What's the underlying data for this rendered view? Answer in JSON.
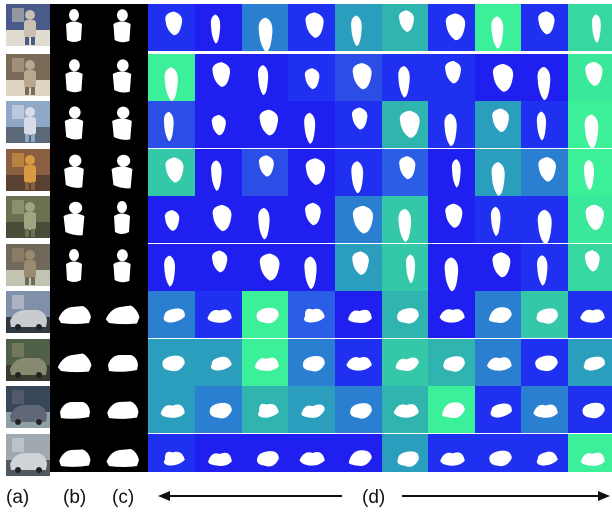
{
  "labels": {
    "a": "(a)",
    "b": "(b)",
    "c": "(c)",
    "d": "(d)"
  },
  "colors": {
    "background_blue": "#1f1ff0",
    "mid_blue": "#2a5ee6",
    "teal": "#2c9ebd",
    "green_teal": "#34c8a8",
    "bright_green": "#3cf09a",
    "mask": "#ffffff",
    "mask_background": "#000000"
  },
  "rows": [
    {
      "scene": "sports-player",
      "colors": [
        "#1f30f0",
        "#1f1ff0",
        "#2a7fd0",
        "#1f30f0",
        "#2c9ebd",
        "#2fb4b0",
        "#1f30f0",
        "#3cf09a",
        "#1f30f0",
        "#36d8a0"
      ]
    },
    {
      "scene": "man-with-bowls",
      "colors": [
        "#3cf09a",
        "#1f1ff0",
        "#1f1ff0",
        "#1f30f0",
        "#2a4ee6",
        "#1f30f0",
        "#1f30f0",
        "#1f1ff0",
        "#1f1ff0",
        "#3ae89c"
      ]
    },
    {
      "scene": "skier",
      "colors": [
        "#2a4ee6",
        "#1f1ff0",
        "#1f1ff0",
        "#1f1ff0",
        "#1f30f0",
        "#2fb4b0",
        "#1f30f0",
        "#2c9ebd",
        "#1f30f0",
        "#3cf09a"
      ]
    },
    {
      "scene": "child-at-table",
      "colors": [
        "#34c8a8",
        "#1f1ff0",
        "#2a4ee6",
        "#1f1ff0",
        "#1f30f0",
        "#2a5ee6",
        "#1f1ff0",
        "#2c9ebd",
        "#2a7fd0",
        "#3cf09a"
      ]
    },
    {
      "scene": "running-man",
      "colors": [
        "#1f1ff0",
        "#1f1ff0",
        "#1f1ff0",
        "#1f1ff0",
        "#2a7fd0",
        "#34c8a8",
        "#1f1ff0",
        "#1f30f0",
        "#1f30f0",
        "#3ae89c"
      ]
    },
    {
      "scene": "walking-people",
      "colors": [
        "#1f1ff0",
        "#1f1ff0",
        "#1f1ff0",
        "#1f1ff0",
        "#2c9ebd",
        "#34c8a8",
        "#1f1ff0",
        "#1f1ff0",
        "#1f30f0",
        "#36d8a0"
      ]
    },
    {
      "scene": "street-car",
      "colors": [
        "#2a7fd0",
        "#1f30f0",
        "#3cf09a",
        "#2a5ee6",
        "#1f1ff0",
        "#2fb4b0",
        "#1f1ff0",
        "#2a7fd0",
        "#34c8a8",
        "#1f30f0"
      ]
    },
    {
      "scene": "parked-car",
      "colors": [
        "#2c9ebd",
        "#2c9ebd",
        "#3cf09a",
        "#2a7fd0",
        "#1f30f0",
        "#34c8a8",
        "#2fb4b0",
        "#2a7fd0",
        "#1f30f0",
        "#2c9ebd"
      ]
    },
    {
      "scene": "car-behind-fence",
      "colors": [
        "#2c9ebd",
        "#2a7fd0",
        "#2fb4b0",
        "#2c9ebd",
        "#2a7fd0",
        "#2fb4b0",
        "#3cf09a",
        "#1f30f0",
        "#2a7fd0",
        "#1f30f0"
      ]
    },
    {
      "scene": "parked-vans",
      "colors": [
        "#1f30f0",
        "#1f1ff0",
        "#1f1ff0",
        "#1f1ff0",
        "#1f1ff0",
        "#2c9ebd",
        "#1f30f0",
        "#1f30f0",
        "#1f30f0",
        "#3cf09a"
      ]
    }
  ]
}
